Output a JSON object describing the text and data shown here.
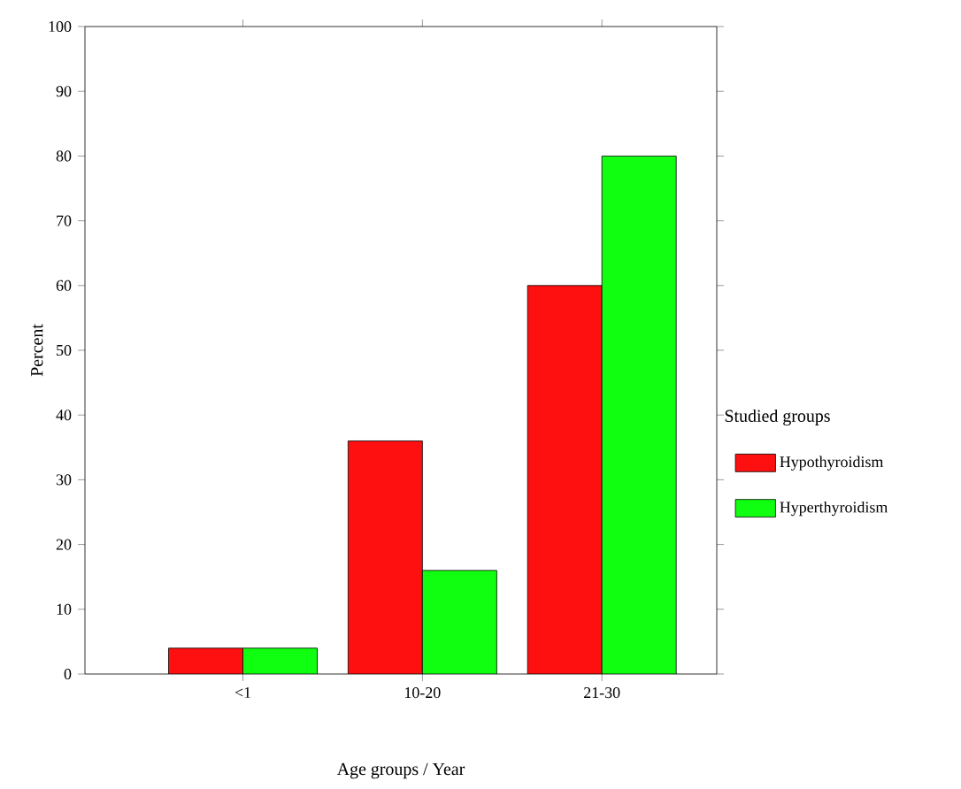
{
  "chart_data": {
    "type": "bar",
    "xlabel": "Age groups / Year",
    "ylabel": "Percent",
    "legend_title": "Studied groups",
    "categories": [
      "<1",
      "10-20",
      "21-30"
    ],
    "series": [
      {
        "name": "Hypothyroidism",
        "color": "#ff1010",
        "values": [
          4,
          36,
          60
        ]
      },
      {
        "name": "Hyperthyroidism",
        "color": "#10ff10",
        "values": [
          4,
          16,
          80
        ]
      }
    ],
    "ylim": [
      0,
      100
    ],
    "yticks": [
      0,
      10,
      20,
      30,
      40,
      50,
      60,
      70,
      80,
      90,
      100
    ],
    "legend": "right"
  }
}
